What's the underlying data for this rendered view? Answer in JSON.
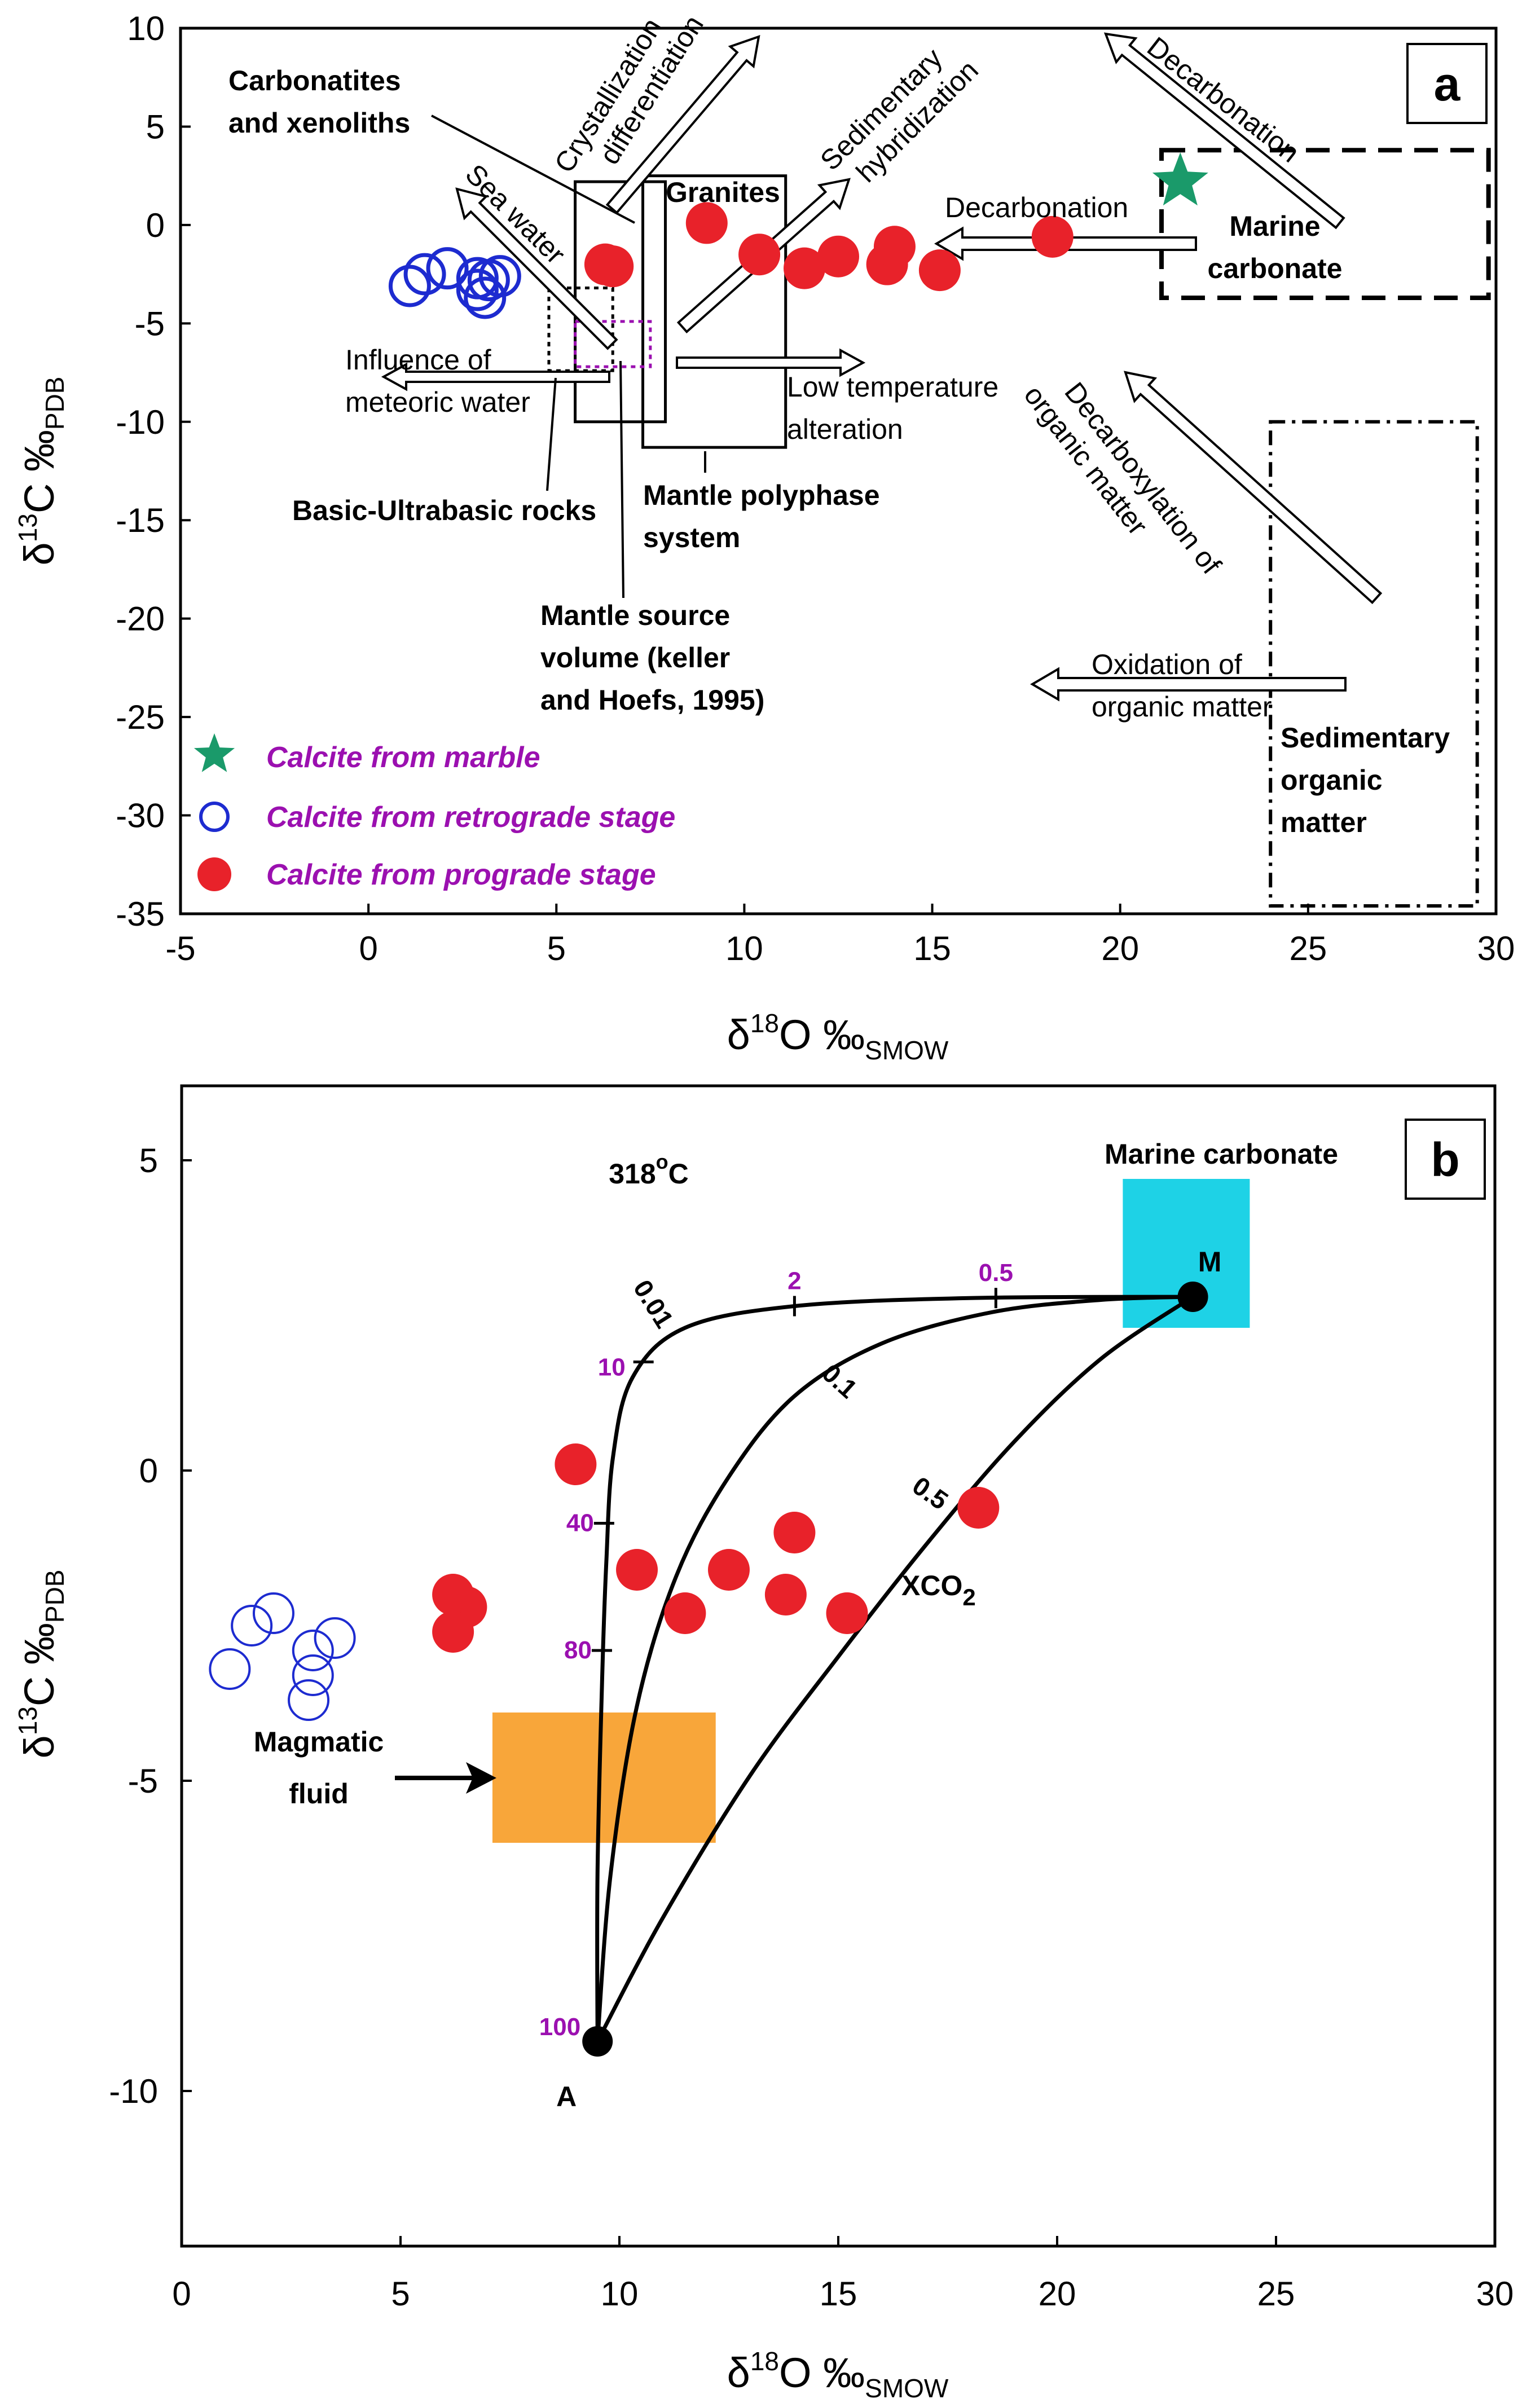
{
  "chart_data": [
    {
      "type": "scatter",
      "panel": "a",
      "xlabel": "δ18O ‰SMOW",
      "xlabel_parts": {
        "delta": "δ",
        "sup": "18",
        "main": "O ‰",
        "sub": "SMOW"
      },
      "ylabel": "δ13C ‰PDB",
      "ylabel_parts": {
        "delta": "δ",
        "sup": "13",
        "main": "C ‰",
        "sub": "PDB"
      },
      "xlim": [
        -5,
        30
      ],
      "ylim": [
        -35,
        10
      ],
      "xticks": [
        -5,
        0,
        5,
        10,
        15,
        20,
        25,
        30
      ],
      "yticks": [
        10,
        5,
        0,
        -5,
        -10,
        -15,
        -20,
        -25,
        -30,
        -35
      ],
      "series": [
        {
          "name": "Calcite from marble",
          "marker": "star",
          "color": "#1a9a6a",
          "x": [
            21.6
          ],
          "y": [
            2.2
          ]
        },
        {
          "name": "Calcite from retrograde stage",
          "marker": "open-circle",
          "color": "#1d2bd0",
          "x": [
            1.1,
            1.5,
            2.1,
            2.9,
            3.2,
            3.5,
            3.1,
            2.9
          ],
          "y": [
            -3.1,
            -2.5,
            -2.2,
            -2.7,
            -2.8,
            -2.6,
            -3.7,
            -3.3
          ]
        },
        {
          "name": "Calcite from prograde stage",
          "marker": "filled-circle",
          "color": "#e8222a",
          "x": [
            6.3,
            6.5,
            9.0,
            10.4,
            11.6,
            12.5,
            13.8,
            14.0,
            15.2,
            18.2
          ],
          "y": [
            -2.0,
            -2.1,
            0.1,
            -1.5,
            -2.2,
            -1.6,
            -2.0,
            -1.1,
            -2.3,
            -0.6
          ]
        }
      ],
      "legend": [
        "Calcite from marble",
        "Calcite from retrograde stage",
        "Calcite from prograde stage"
      ],
      "annotations": {
        "carbonatites": [
          "Carbonatites",
          "and xenoliths"
        ],
        "crystallization": [
          "Crystallization",
          "differentiation"
        ],
        "sea_water": "Sea water",
        "sedimentary_hybridization": [
          "Sedimentary",
          "hybridization"
        ],
        "granites": "Granites",
        "decarbonation_mid": "Decarbonation",
        "decarbonation_top": "Decarbonation",
        "marine_carbonate": [
          "Marine",
          "carbonate"
        ],
        "influence_meteoric": [
          "Influence of",
          "meteoric water"
        ],
        "low_temperature": [
          "Low temperature",
          "alteration"
        ],
        "basic_ultrabasic": "Basic-Ultrabasic rocks",
        "mantle_polyphase": [
          "Mantle polyphase",
          "system"
        ],
        "decarboxylation": [
          "Decarboxylation of",
          "organic matter"
        ],
        "mantle_source": [
          "Mantle source",
          "volume (keller",
          "and Hoefs, 1995)"
        ],
        "oxidation": [
          "Oxidation of",
          "organic matter"
        ],
        "sedimentary_organic": [
          "Sedimentary",
          "organic",
          "matter"
        ]
      },
      "panel_label": "a"
    },
    {
      "type": "line",
      "panel": "b",
      "xlabel": "δ18O ‰SMOW",
      "xlabel_parts": {
        "delta": "δ",
        "sup": "18",
        "main": "O ‰",
        "sub": "SMOW"
      },
      "ylabel": "δ13C ‰PDB",
      "ylabel_parts": {
        "delta": "δ",
        "sup": "13",
        "main": "C ‰",
        "sub": "PDB"
      },
      "xlim": [
        0,
        30
      ],
      "ylim": [
        -12.5,
        6.2
      ],
      "xticks": [
        0,
        5,
        10,
        15,
        20,
        25,
        30
      ],
      "yticks": [
        5,
        0,
        -5,
        -10
      ],
      "temperature_parts": {
        "value": "318",
        "sup": "o",
        "unit": "C"
      },
      "endmembers": [
        {
          "name": "M",
          "x": 23.1,
          "y": 2.8
        },
        {
          "name": "A",
          "x": 9.5,
          "y": -9.2
        }
      ],
      "mixing_curves": [
        {
          "label": "0.01",
          "points": [
            [
              9.5,
              -9.2
            ],
            [
              9.5,
              -6.5
            ],
            [
              9.6,
              -3.5
            ],
            [
              9.7,
              -1.5
            ],
            [
              9.85,
              0.2
            ],
            [
              10.3,
              1.5
            ],
            [
              11.5,
              2.3
            ],
            [
              14.0,
              2.65
            ],
            [
              18.0,
              2.78
            ],
            [
              23.1,
              2.8
            ]
          ]
        },
        {
          "label": "0.1",
          "points": [
            [
              9.5,
              -9.2
            ],
            [
              9.8,
              -6.5
            ],
            [
              10.4,
              -3.8
            ],
            [
              11.3,
              -1.7
            ],
            [
              12.5,
              -0.1
            ],
            [
              14.0,
              1.2
            ],
            [
              16.0,
              2.05
            ],
            [
              18.5,
              2.55
            ],
            [
              21.0,
              2.75
            ],
            [
              23.1,
              2.8
            ]
          ]
        },
        {
          "label": "0.5",
          "points": [
            [
              9.5,
              -9.2
            ],
            [
              11.0,
              -7.2
            ],
            [
              13.0,
              -4.9
            ],
            [
              15.0,
              -3.0
            ],
            [
              17.0,
              -1.2
            ],
            [
              19.0,
              0.45
            ],
            [
              21.0,
              1.8
            ],
            [
              23.1,
              2.8
            ]
          ]
        }
      ],
      "tick_marks": [
        {
          "label": "100",
          "x": 9.5,
          "y": -9.2
        },
        {
          "label": "80",
          "x": 9.6,
          "y": -2.9
        },
        {
          "label": "40",
          "x": 9.65,
          "y": -0.85
        },
        {
          "label": "10",
          "x": 10.55,
          "y": 1.75
        },
        {
          "label": "2",
          "x": 14.0,
          "y": 2.65
        },
        {
          "label": "0.5",
          "x": 18.6,
          "y": 2.78
        }
      ],
      "curve_legend": "XCO2",
      "curve_legend_parts": {
        "main": "XCO",
        "sub": "2"
      },
      "boxes": [
        {
          "name": "Marine carbonate",
          "x0": 21.5,
          "x1": 24.4,
          "y0": 2.3,
          "y1": 4.7,
          "color": "#1ed2e6"
        },
        {
          "name": "Magmatic fluid",
          "x0": 7.1,
          "x1": 12.2,
          "y0": -6.0,
          "y1": -3.9,
          "color": "#f8a63a"
        }
      ],
      "magmatic_fluid_lines": [
        "Magmatic",
        "fluid"
      ],
      "series": [
        {
          "name": "Calcite from retrograde stage",
          "marker": "open-circle",
          "color": "#1d2bd0",
          "x": [
            1.1,
            1.6,
            2.1,
            3.0,
            3.5,
            3.0,
            2.9
          ],
          "y": [
            -3.2,
            -2.5,
            -2.3,
            -2.9,
            -2.7,
            -3.3,
            -3.7
          ]
        },
        {
          "name": "Calcite from prograde stage",
          "marker": "filled-circle",
          "color": "#e8222a",
          "x": [
            6.2,
            6.5,
            6.2,
            9.0,
            10.4,
            11.5,
            12.5,
            13.8,
            14.0,
            15.2,
            18.2
          ],
          "y": [
            -2.0,
            -2.2,
            -2.6,
            0.1,
            -1.6,
            -2.3,
            -1.6,
            -2.0,
            -1.0,
            -2.3,
            -0.6
          ]
        }
      ],
      "panel_label": "b"
    }
  ]
}
